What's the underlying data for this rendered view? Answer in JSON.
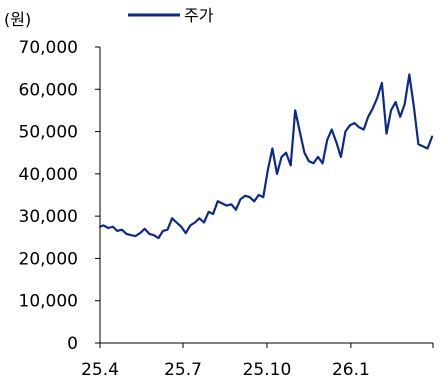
{
  "chart_data": {
    "type": "line",
    "unit_label": "(원)",
    "legend": {
      "position": "top-center"
    },
    "colors": {
      "series": "#0b2a8c",
      "axis": "#000000"
    },
    "yticks": [
      "0",
      "10,000",
      "20,000",
      "30,000",
      "40,000",
      "50,000",
      "60,000",
      "70,000"
    ],
    "xticks": [
      "25.4",
      "25.7",
      "25.10",
      "26.1"
    ],
    "ylim": [
      0,
      70000
    ],
    "xlim": [
      "2025-04-01",
      "2026-04-01"
    ],
    "grid": false,
    "series": [
      {
        "name": "주가",
        "x": [
          "2025-04-01",
          "2025-04-05",
          "2025-04-10",
          "2025-04-15",
          "2025-04-20",
          "2025-04-25",
          "2025-04-30",
          "2025-05-05",
          "2025-05-10",
          "2025-05-15",
          "2025-05-20",
          "2025-05-25",
          "2025-05-30",
          "2025-06-04",
          "2025-06-09",
          "2025-06-14",
          "2025-06-19",
          "2025-06-24",
          "2025-06-29",
          "2025-07-04",
          "2025-07-09",
          "2025-07-14",
          "2025-07-19",
          "2025-07-24",
          "2025-07-29",
          "2025-08-03",
          "2025-08-08",
          "2025-08-13",
          "2025-08-18",
          "2025-08-23",
          "2025-08-28",
          "2025-09-02",
          "2025-09-07",
          "2025-09-12",
          "2025-09-17",
          "2025-09-22",
          "2025-09-27",
          "2025-10-02",
          "2025-10-07",
          "2025-10-12",
          "2025-10-17",
          "2025-10-22",
          "2025-10-27",
          "2025-11-01",
          "2025-11-06",
          "2025-11-11",
          "2025-11-16",
          "2025-11-21",
          "2025-11-26",
          "2025-12-01",
          "2025-12-06",
          "2025-12-11",
          "2025-12-16",
          "2025-12-21",
          "2025-12-26",
          "2025-12-31",
          "2026-01-05",
          "2026-01-10",
          "2026-01-15",
          "2026-01-20",
          "2026-01-25",
          "2026-01-30",
          "2026-02-04",
          "2026-02-09",
          "2026-02-14",
          "2026-02-19",
          "2026-02-24",
          "2026-03-01",
          "2026-03-06",
          "2026-03-11",
          "2026-03-16",
          "2026-03-21",
          "2026-03-26",
          "2026-03-31"
        ],
        "values": [
          27500,
          27800,
          27200,
          27500,
          26500,
          26800,
          25800,
          25500,
          25300,
          26000,
          27000,
          25800,
          25500,
          24800,
          26500,
          26800,
          29500,
          28500,
          27500,
          26000,
          27800,
          28500,
          29500,
          28500,
          31000,
          30500,
          33500,
          33000,
          32500,
          32800,
          31500,
          34000,
          34800,
          34500,
          33500,
          35000,
          34500,
          41000,
          46000,
          40000,
          44000,
          45000,
          42000,
          55000,
          50000,
          45000,
          43000,
          42500,
          44000,
          42500,
          48000,
          50500,
          47500,
          44000,
          50000,
          51500,
          52000,
          51000,
          50500,
          53500,
          55500,
          58000,
          61500,
          49500,
          55000,
          57000,
          53500,
          56500,
          63500,
          56000,
          47000,
          46500,
          46000,
          48800
        ]
      }
    ]
  }
}
